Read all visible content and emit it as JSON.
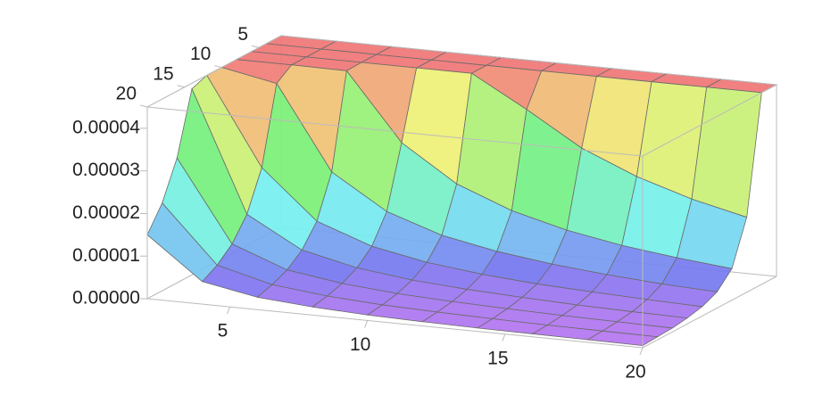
{
  "chart_data": {
    "type": "surface",
    "x": [
      2,
      4,
      6,
      8,
      10,
      12,
      14,
      16,
      18,
      20
    ],
    "y": [
      2,
      4,
      6,
      8,
      10,
      12,
      14,
      16,
      18,
      20
    ],
    "z": [
      [
        4.5e-05,
        4.5e-05,
        4.5e-05,
        4.5e-05,
        4.5e-05,
        4.5e-05,
        4.5e-05,
        4.5e-05,
        4.5e-05,
        4.5e-05
      ],
      [
        4.5e-05,
        4.5e-05,
        4.5e-05,
        4.5e-05,
        4.5e-05,
        4.5e-05,
        4.5e-05,
        4.5e-05,
        4.5e-05,
        4.5e-05
      ],
      [
        4.5e-05,
        4.5e-05,
        4.5e-05,
        4.5e-05,
        4.5e-05,
        3.78e-05,
        3e-05,
        2.46e-05,
        2.06e-05,
        1.76e-05
      ],
      [
        4.5e-05,
        4.5e-05,
        4.49e-05,
        2.93e-05,
        2.09e-05,
        1.59e-05,
        1.26e-05,
        1.03e-05,
        8.7e-06,
        7.4e-06
      ],
      [
        4.5e-05,
        4.25e-05,
        2.3e-05,
        1.5e-05,
        1.07e-05,
        8.2e-06,
        6.5e-06,
        5.3e-06,
        4.4e-06,
        3.8e-06
      ],
      [
        4.5e-05,
        2.46e-05,
        1.33e-05,
        8.7e-06,
        6.2e-06,
        4.7e-06,
        3.7e-06,
        3.1e-06,
        2.6e-06,
        2.2e-06
      ],
      [
        4.37e-05,
        1.55e-05,
        8.4e-06,
        5.5e-06,
        3.9e-06,
        3e-06,
        2.4e-06,
        1.9e-06,
        1.6e-06,
        1.4e-06
      ],
      [
        2.93e-05,
        1.04e-05,
        5.6e-06,
        3.7e-06,
        2.6e-06,
        2e-06,
        1.6e-06,
        1.3e-06,
        1.1e-06,
        9e-07
      ],
      [
        2.06e-05,
        7.3e-06,
        4e-06,
        2.6e-06,
        1.8e-06,
        1.4e-06,
        1.1e-06,
        9e-07,
        8e-07,
        7e-07
      ],
      [
        1.5e-05,
        5.3e-06,
        2.9e-06,
        1.9e-06,
        1.3e-06,
        1e-06,
        8e-07,
        7e-07,
        6e-07,
        5e-07
      ]
    ],
    "xlim": [
      2,
      20
    ],
    "ylim": [
      2,
      20
    ],
    "zlim": [
      0,
      4.5e-05
    ],
    "xticks": [
      5,
      10,
      15,
      20
    ],
    "yticks": [
      5,
      10,
      15,
      20
    ],
    "zticks": [
      {
        "value": 0,
        "label": "0.00000"
      },
      1e-05,
      2e-05,
      3e-05,
      4e-05
    ],
    "colormap": "rainbow",
    "mesh": true
  }
}
